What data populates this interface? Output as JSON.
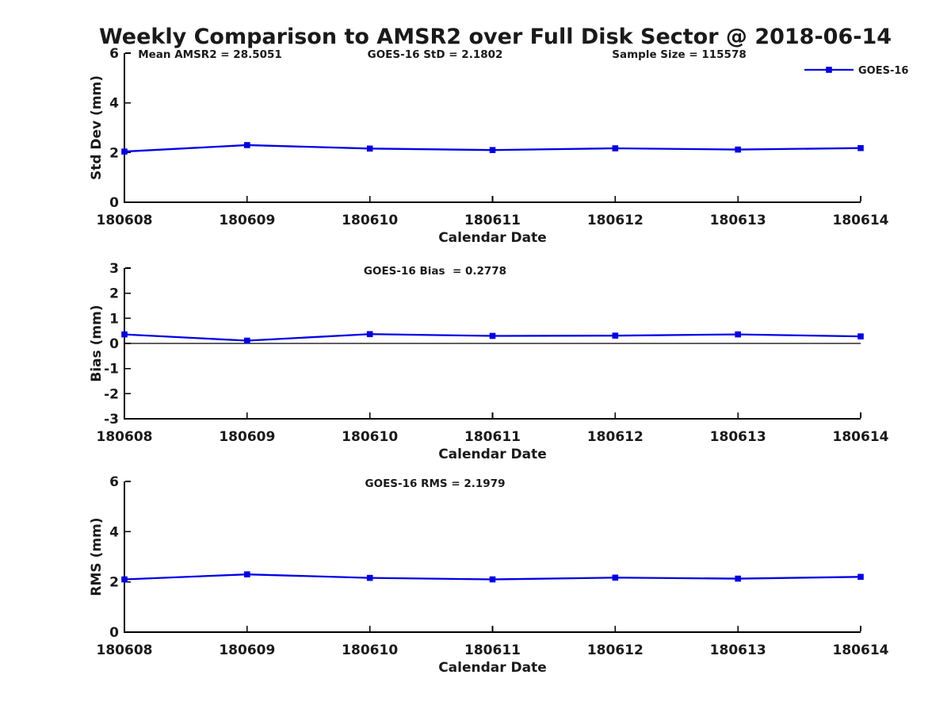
{
  "title": "Weekly Comparison to AMSR2 over Full Disk Sector @ 2018-06-14",
  "legend": {
    "label": "GOES-16"
  },
  "colors": {
    "series": "#0000e6",
    "axis": "#000000",
    "text": "#1a1a1a",
    "background": "#ffffff"
  },
  "x_axis": {
    "label": "Calendar Date",
    "categories": [
      "180608",
      "180609",
      "180610",
      "180611",
      "180612",
      "180613",
      "180614"
    ]
  },
  "chart_data": [
    {
      "type": "line",
      "name": "std-dev",
      "annotations": [
        "Mean AMSR2 = 28.5051",
        "GOES-16 StD = 2.1802",
        "Sample Size = 115578"
      ],
      "xlabel": "Calendar Date",
      "ylabel": "Std Dev (mm)",
      "ylim": [
        0,
        6
      ],
      "yticks": [
        0,
        2,
        4,
        6
      ],
      "grid": false,
      "zero_line": false,
      "legend_position": "top-right-outside",
      "categories": [
        "180608",
        "180609",
        "180610",
        "180611",
        "180612",
        "180613",
        "180614"
      ],
      "series": [
        {
          "name": "GOES-16",
          "values": [
            2.04,
            2.3,
            2.16,
            2.1,
            2.17,
            2.12,
            2.18
          ]
        }
      ]
    },
    {
      "type": "line",
      "name": "bias",
      "annotations": [
        "GOES-16 Bias  = 0.2778"
      ],
      "xlabel": "Calendar Date",
      "ylabel": "Bias (mm)",
      "ylim": [
        -3,
        3
      ],
      "yticks": [
        3,
        2,
        1,
        0,
        -1,
        -2,
        -3
      ],
      "grid": false,
      "zero_line": true,
      "categories": [
        "180608",
        "180609",
        "180610",
        "180611",
        "180612",
        "180613",
        "180614"
      ],
      "series": [
        {
          "name": "GOES-16",
          "values": [
            0.36,
            0.11,
            0.37,
            0.3,
            0.31,
            0.36,
            0.28
          ]
        }
      ]
    },
    {
      "type": "line",
      "name": "rms",
      "annotations": [
        "GOES-16 RMS = 2.1979"
      ],
      "xlabel": "Calendar Date",
      "ylabel": "RMS (mm)",
      "ylim": [
        0,
        6
      ],
      "yticks": [
        0,
        2,
        4,
        6
      ],
      "grid": false,
      "zero_line": false,
      "categories": [
        "180608",
        "180609",
        "180610",
        "180611",
        "180612",
        "180613",
        "180614"
      ],
      "series": [
        {
          "name": "GOES-16",
          "values": [
            2.1,
            2.3,
            2.16,
            2.1,
            2.17,
            2.13,
            2.2
          ]
        }
      ]
    }
  ]
}
